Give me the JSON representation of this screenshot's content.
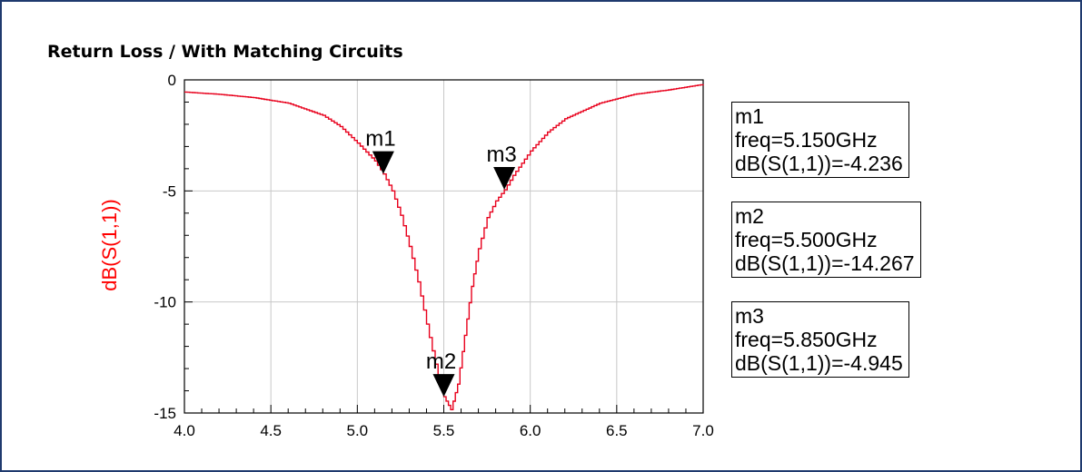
{
  "chart_data": {
    "type": "line",
    "title": "Return Loss / With Matching Circuits",
    "xlabel": "",
    "ylabel": "dB(S(1,1))",
    "xlim": [
      4.0,
      7.0
    ],
    "ylim": [
      -15,
      0
    ],
    "x_ticks": [
      "4.0",
      "4.5",
      "5.0",
      "5.5",
      "6.0",
      "6.5",
      "7.0"
    ],
    "y_ticks": [
      "0",
      "-5",
      "-10",
      "-15"
    ],
    "grid": true,
    "series": [
      {
        "color": "#e8001c",
        "x": [
          4.0,
          4.2,
          4.4,
          4.6,
          4.8,
          4.9,
          5.0,
          5.1,
          5.15,
          5.2,
          5.25,
          5.3,
          5.35,
          5.4,
          5.45,
          5.5,
          5.54,
          5.58,
          5.62,
          5.66,
          5.7,
          5.75,
          5.8,
          5.85,
          5.9,
          6.0,
          6.1,
          6.2,
          6.4,
          6.6,
          6.8,
          7.0
        ],
        "y": [
          -0.55,
          -0.65,
          -0.8,
          -1.05,
          -1.6,
          -2.1,
          -2.85,
          -3.65,
          -4.24,
          -5.0,
          -6.1,
          -7.5,
          -9.1,
          -11.0,
          -12.8,
          -14.27,
          -14.85,
          -13.7,
          -11.5,
          -9.3,
          -7.6,
          -6.2,
          -5.45,
          -4.95,
          -4.3,
          -3.2,
          -2.35,
          -1.75,
          -1.05,
          -0.65,
          -0.45,
          -0.2
        ]
      }
    ],
    "markers": [
      {
        "label": "m1",
        "x": 5.15,
        "y": -4.236,
        "freq": "freq=5.150GHz",
        "value": "dB(S(1,1))=-4.236"
      },
      {
        "label": "m2",
        "x": 5.5,
        "y": -14.267,
        "freq": "freq=5.500GHz",
        "value": "dB(S(1,1))=-14.267"
      },
      {
        "label": "m3",
        "x": 5.85,
        "y": -4.945,
        "freq": "freq=5.850GHz",
        "value": "dB(S(1,1))=-4.945"
      }
    ],
    "colors": {
      "curve": "#e8001c",
      "ylabel": "#ff0000",
      "border": "#1f3a6e"
    }
  }
}
